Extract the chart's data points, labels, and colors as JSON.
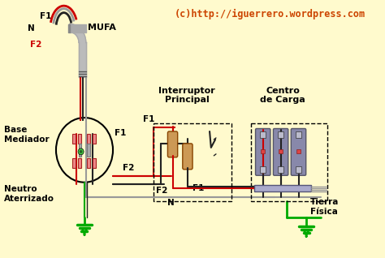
{
  "bg_color": "#FFFACD",
  "title_text": "(c)http://iguerrero.wordpress.com",
  "title_color": "#CC4400",
  "title_fontsize": 8.5,
  "labels": {
    "mufa": "MUFA",
    "f1_top": "F1",
    "f2_top": "F2",
    "n_top": "N",
    "base_medidor": "Base\nMediador",
    "neutro_aterizado": "Neutro\nAterrizado",
    "interruptor": "Interruptor\nPrincipal",
    "centro_carga": "Centro\nde Carga",
    "f1_left": "F1",
    "f2_mid": "F2",
    "f1_bot": "F1",
    "n_bot": "N",
    "tierra_fisica": "Tierra\nFísica"
  },
  "wire_colors": {
    "red": "#CC0000",
    "black": "#222222",
    "gray": "#999999",
    "green": "#00AA00",
    "darkgray": "#555555"
  }
}
